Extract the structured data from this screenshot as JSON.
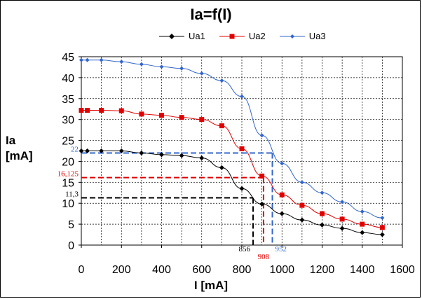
{
  "chart_data": {
    "type": "line",
    "title": "Ia=f(I)",
    "xlabel": "I [mA]",
    "ylabel_line1": "Ia",
    "ylabel_line2": "[mA]",
    "xlim": [
      0,
      1600
    ],
    "ylim": [
      0,
      45
    ],
    "xticks": [
      "0",
      "200",
      "400",
      "600",
      "800",
      "1000",
      "1200",
      "1400",
      "1600"
    ],
    "yticks": [
      "0",
      "5",
      "10",
      "15",
      "20",
      "25",
      "30",
      "35",
      "40",
      "45"
    ],
    "x_grid_step": 100,
    "y_grid_step": 5,
    "series": [
      {
        "name": "Ua1",
        "color": "#000000",
        "marker": "diamond",
        "x": [
          0,
          30,
          100,
          200,
          300,
          400,
          500,
          600,
          700,
          800,
          900,
          1000,
          1100,
          1200,
          1300,
          1400,
          1500
        ],
        "y": [
          22.5,
          22.5,
          22.5,
          22.5,
          22.0,
          21.6,
          21.4,
          20.8,
          18.5,
          13.5,
          9.8,
          7.5,
          6.0,
          4.8,
          4.0,
          3.0,
          2.5
        ]
      },
      {
        "name": "Ua2",
        "color": "#e00000",
        "marker": "square",
        "x": [
          0,
          30,
          100,
          200,
          300,
          400,
          500,
          600,
          700,
          800,
          900,
          1000,
          1100,
          1200,
          1300,
          1400,
          1500
        ],
        "y": [
          32.2,
          32.2,
          32.2,
          32.1,
          31.3,
          31.0,
          30.5,
          30.0,
          28.5,
          23.0,
          16.5,
          12.0,
          9.5,
          7.5,
          6.2,
          5.0,
          4.2
        ]
      },
      {
        "name": "Ua3",
        "color": "#3366cc",
        "marker": "diamond-small",
        "x": [
          0,
          30,
          100,
          200,
          300,
          400,
          500,
          600,
          700,
          800,
          900,
          1000,
          1100,
          1200,
          1300,
          1400,
          1500
        ],
        "y": [
          44.2,
          44.2,
          44.2,
          43.8,
          43.2,
          42.6,
          42.2,
          41.0,
          39.3,
          35.5,
          26.2,
          19.5,
          15.0,
          12.5,
          10.3,
          8.0,
          6.5
        ]
      }
    ],
    "annotations": [
      {
        "series": "Ua1",
        "x": 856,
        "y": 11.3,
        "x_label": "856",
        "y_label": "11,3",
        "color": "#000000"
      },
      {
        "series": "Ua2",
        "x": 908,
        "y": 16.125,
        "x_label": "908",
        "y_label": "16,125",
        "color": "#e00000"
      },
      {
        "series": "Ua3",
        "x": 952,
        "y": 22,
        "x_label": "952",
        "y_label": "22",
        "color": "#3366cc"
      }
    ]
  }
}
